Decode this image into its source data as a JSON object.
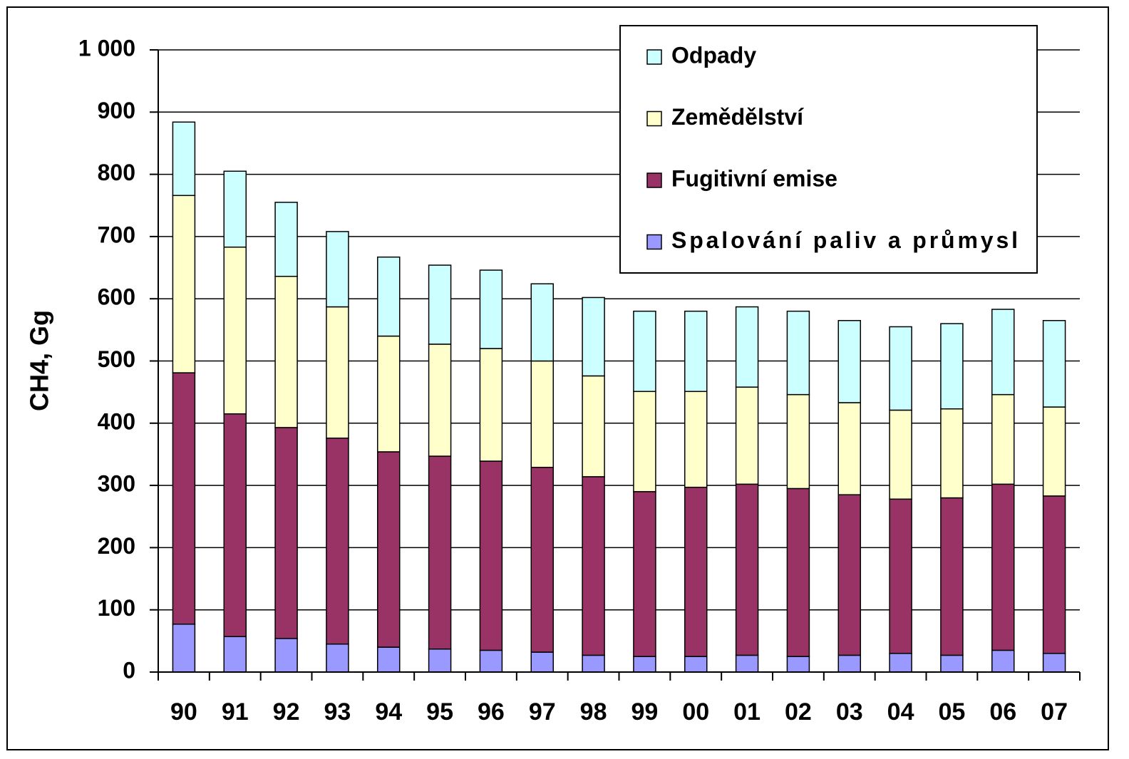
{
  "chart_data": {
    "type": "stacked_bar",
    "ylabel": "CH4, Gg",
    "categories": [
      "90",
      "91",
      "92",
      "93",
      "94",
      "95",
      "96",
      "97",
      "98",
      "99",
      "00",
      "01",
      "02",
      "03",
      "04",
      "05",
      "06",
      "07"
    ],
    "series": [
      {
        "name": "Spalování paliv a průmysl",
        "color": "#9999ff",
        "values": [
          77,
          57,
          54,
          45,
          40,
          37,
          35,
          32,
          27,
          25,
          25,
          27,
          25,
          27,
          30,
          27,
          35,
          30
        ]
      },
      {
        "name": "Fugitivní emise",
        "color": "#993366",
        "values": [
          404,
          358,
          339,
          331,
          314,
          310,
          304,
          297,
          287,
          265,
          272,
          275,
          270,
          258,
          248,
          253,
          267,
          253
        ]
      },
      {
        "name": "Zemědělství",
        "color": "#ffffcc",
        "values": [
          285,
          268,
          243,
          211,
          186,
          180,
          181,
          171,
          162,
          161,
          154,
          156,
          151,
          148,
          143,
          143,
          144,
          143
        ]
      },
      {
        "name": "Odpady",
        "color": "#ccffff",
        "values": [
          118,
          122,
          119,
          121,
          127,
          127,
          126,
          124,
          126,
          129,
          129,
          129,
          134,
          132,
          134,
          137,
          137,
          139
        ]
      }
    ],
    "ylim": [
      0,
      1000
    ],
    "yticks": [
      0,
      100,
      200,
      300,
      400,
      500,
      600,
      700,
      800,
      900,
      {
        "value": 1000,
        "label": "1 000"
      }
    ],
    "grid": true,
    "legend": "top-right"
  }
}
